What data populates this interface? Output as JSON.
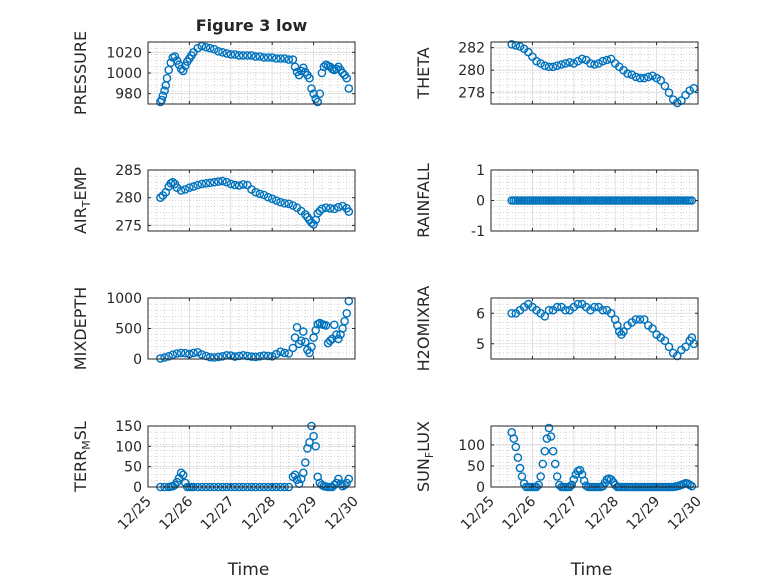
{
  "figure": {
    "title": "Figure 3 low",
    "marker_color": "#0072BD",
    "x_tick_labels": [
      "12/25",
      "12/26",
      "12/27",
      "12/28",
      "12/29",
      "12/30"
    ],
    "xlabel": "Time"
  },
  "chart_data": [
    {
      "type": "scatter",
      "marker": "circle-open",
      "grid": true,
      "title": "Figure 3 low",
      "ylabel": "PRESSURE",
      "ylim": [
        970,
        1030
      ],
      "yticks": [
        980,
        1000,
        1020
      ],
      "xlim": [
        0,
        5
      ],
      "xlabel": "",
      "x": [
        0.3,
        0.33,
        0.36,
        0.4,
        0.43,
        0.46,
        0.5,
        0.55,
        0.6,
        0.65,
        0.7,
        0.75,
        0.8,
        0.85,
        0.9,
        0.95,
        1.0,
        1.05,
        1.1,
        1.2,
        1.3,
        1.4,
        1.5,
        1.6,
        1.7,
        1.8,
        1.9,
        2.0,
        2.1,
        2.2,
        2.3,
        2.4,
        2.5,
        2.6,
        2.7,
        2.8,
        2.9,
        3.0,
        3.1,
        3.2,
        3.3,
        3.4,
        3.5,
        3.55,
        3.6,
        3.65,
        3.7,
        3.75,
        3.8,
        3.85,
        3.9,
        3.95,
        4.0,
        4.05,
        4.1,
        4.15,
        4.2,
        4.25,
        4.3,
        4.35,
        4.4,
        4.45,
        4.5,
        4.55,
        4.6,
        4.65,
        4.7,
        4.75,
        4.8,
        4.85
      ],
      "y": [
        972,
        974,
        978,
        983,
        988,
        995,
        1003,
        1010,
        1015,
        1016,
        1012,
        1008,
        1004,
        1002,
        1007,
        1011,
        1014,
        1017,
        1020,
        1024,
        1026,
        1025,
        1024,
        1023,
        1021,
        1020,
        1019,
        1018,
        1018,
        1017,
        1017,
        1017,
        1017,
        1016,
        1016,
        1015,
        1015,
        1015,
        1014,
        1014,
        1014,
        1013,
        1013,
        1006,
        1001,
        998,
        1002,
        1005,
        1001,
        998,
        995,
        985,
        980,
        975,
        972,
        980,
        1000,
        1006,
        1008,
        1007,
        1006,
        1004,
        1003,
        1004,
        1006,
        1003,
        1000,
        998,
        995,
        985
      ]
    },
    {
      "type": "scatter",
      "marker": "circle-open",
      "grid": true,
      "ylabel": "THETA",
      "ylim": [
        277,
        282.5
      ],
      "yticks": [
        278,
        280,
        282
      ],
      "xlim": [
        0,
        5
      ],
      "xlabel": "",
      "x": [
        0.5,
        0.6,
        0.7,
        0.8,
        0.9,
        1.0,
        1.1,
        1.2,
        1.3,
        1.4,
        1.5,
        1.6,
        1.7,
        1.8,
        1.9,
        2.0,
        2.1,
        2.2,
        2.3,
        2.4,
        2.5,
        2.6,
        2.7,
        2.8,
        2.9,
        3.0,
        3.1,
        3.2,
        3.3,
        3.4,
        3.5,
        3.6,
        3.7,
        3.8,
        3.9,
        4.0,
        4.1,
        4.2,
        4.3,
        4.4,
        4.5,
        4.6,
        4.7,
        4.8,
        4.9
      ],
      "y": [
        282.3,
        282.2,
        282.1,
        281.9,
        281.6,
        281.2,
        280.8,
        280.6,
        280.4,
        280.3,
        280.3,
        280.4,
        280.5,
        280.6,
        280.7,
        280.6,
        280.8,
        281.0,
        280.9,
        280.6,
        280.5,
        280.6,
        280.8,
        280.9,
        281.0,
        280.6,
        280.3,
        280.0,
        279.7,
        279.6,
        279.4,
        279.3,
        279.3,
        279.4,
        279.5,
        279.3,
        279.1,
        278.6,
        278.0,
        277.4,
        277.1,
        277.3,
        277.8,
        278.2,
        278.4
      ]
    },
    {
      "type": "scatter",
      "marker": "circle-open",
      "grid": true,
      "ylabel": "AIR_TEMP",
      "ylabel_main": "AIR",
      "ylabel_sub": "T",
      "ylabel_rest": "EMP",
      "ylim": [
        274,
        285
      ],
      "yticks": [
        275,
        280,
        285
      ],
      "xlim": [
        0,
        5
      ],
      "xlabel": "",
      "x": [
        0.3,
        0.36,
        0.43,
        0.5,
        0.55,
        0.6,
        0.65,
        0.7,
        0.8,
        0.9,
        1.0,
        1.1,
        1.2,
        1.3,
        1.4,
        1.5,
        1.6,
        1.7,
        1.8,
        1.9,
        2.0,
        2.1,
        2.2,
        2.3,
        2.4,
        2.5,
        2.6,
        2.7,
        2.8,
        2.9,
        3.0,
        3.1,
        3.2,
        3.3,
        3.4,
        3.5,
        3.6,
        3.7,
        3.8,
        3.85,
        3.9,
        3.95,
        4.0,
        4.05,
        4.1,
        4.15,
        4.2,
        4.3,
        4.4,
        4.5,
        4.6,
        4.7,
        4.8,
        4.85
      ],
      "y": [
        280.0,
        280.4,
        281.0,
        282.0,
        282.6,
        282.8,
        282.5,
        281.8,
        281.3,
        281.5,
        281.8,
        282.0,
        282.3,
        282.5,
        282.6,
        282.7,
        282.8,
        282.9,
        283.0,
        282.8,
        282.5,
        282.3,
        282.2,
        282.4,
        282.3,
        281.5,
        281.0,
        280.7,
        280.5,
        280.1,
        279.8,
        279.5,
        279.2,
        279.0,
        278.9,
        278.6,
        278.2,
        277.6,
        277.0,
        276.5,
        276.0,
        275.5,
        275.2,
        276.0,
        277.2,
        277.6,
        278.0,
        278.2,
        278.1,
        278.0,
        278.3,
        278.5,
        278.1,
        277.5
      ]
    },
    {
      "type": "scatter",
      "marker": "circle-open",
      "grid": true,
      "ylabel": "RAINFALL",
      "ylim": [
        -1,
        1
      ],
      "yticks": [
        -1,
        0,
        1
      ],
      "xlim": [
        0,
        5
      ],
      "xlabel": "",
      "x_start": 0.5,
      "x_end": 4.85,
      "x_step": 0.05,
      "constant_y": 0
    },
    {
      "type": "scatter",
      "marker": "circle-open",
      "grid": true,
      "ylabel": "MIXDEPTH",
      "ylim": [
        0,
        1000
      ],
      "yticks": [
        0,
        500,
        1000
      ],
      "xlim": [
        0,
        5
      ],
      "xlabel": "",
      "x": [
        0.3,
        0.4,
        0.5,
        0.6,
        0.7,
        0.8,
        0.9,
        1.0,
        1.1,
        1.2,
        1.3,
        1.4,
        1.5,
        1.6,
        1.7,
        1.8,
        1.9,
        2.0,
        2.1,
        2.2,
        2.3,
        2.4,
        2.5,
        2.6,
        2.7,
        2.8,
        2.9,
        3.0,
        3.1,
        3.2,
        3.3,
        3.4,
        3.5,
        3.55,
        3.6,
        3.65,
        3.7,
        3.75,
        3.8,
        3.85,
        3.9,
        3.95,
        4.0,
        4.05,
        4.1,
        4.15,
        4.2,
        4.25,
        4.3,
        4.35,
        4.4,
        4.45,
        4.5,
        4.55,
        4.6,
        4.65,
        4.7,
        4.75,
        4.8,
        4.85
      ],
      "y": [
        10,
        25,
        45,
        70,
        90,
        100,
        95,
        80,
        100,
        110,
        75,
        50,
        30,
        25,
        35,
        45,
        60,
        55,
        40,
        50,
        60,
        50,
        40,
        35,
        45,
        55,
        50,
        45,
        80,
        120,
        100,
        90,
        180,
        350,
        520,
        250,
        300,
        450,
        280,
        150,
        100,
        200,
        350,
        470,
        570,
        590,
        570,
        560,
        550,
        260,
        300,
        330,
        560,
        400,
        330,
        400,
        500,
        620,
        750,
        950
      ]
    },
    {
      "type": "scatter",
      "marker": "circle-open",
      "grid": true,
      "ylabel": "H2OMIXRA",
      "ylim": [
        4.5,
        6.5
      ],
      "yticks": [
        5,
        6
      ],
      "xlim": [
        0,
        5
      ],
      "xlabel": "",
      "x": [
        0.5,
        0.6,
        0.7,
        0.8,
        0.9,
        1.0,
        1.1,
        1.2,
        1.3,
        1.4,
        1.5,
        1.6,
        1.7,
        1.8,
        1.9,
        2.0,
        2.1,
        2.2,
        2.3,
        2.4,
        2.5,
        2.6,
        2.7,
        2.8,
        2.9,
        3.0,
        3.05,
        3.1,
        3.15,
        3.2,
        3.3,
        3.4,
        3.5,
        3.6,
        3.7,
        3.8,
        3.9,
        4.0,
        4.1,
        4.2,
        4.3,
        4.4,
        4.5,
        4.6,
        4.7,
        4.8,
        4.85,
        4.9
      ],
      "y": [
        6.0,
        6.0,
        6.1,
        6.2,
        6.3,
        6.2,
        6.1,
        6.0,
        5.9,
        6.1,
        6.1,
        6.2,
        6.2,
        6.1,
        6.1,
        6.2,
        6.3,
        6.3,
        6.2,
        6.1,
        6.2,
        6.2,
        6.1,
        6.1,
        6.0,
        5.8,
        5.6,
        5.4,
        5.3,
        5.4,
        5.6,
        5.7,
        5.8,
        5.8,
        5.8,
        5.6,
        5.5,
        5.3,
        5.2,
        5.1,
        4.9,
        4.7,
        4.6,
        4.8,
        4.9,
        5.1,
        5.2,
        5.0
      ]
    },
    {
      "type": "scatter",
      "marker": "circle-open",
      "grid": true,
      "ylabel": "TERR_MSL",
      "ylabel_main": "TERR",
      "ylabel_sub": "M",
      "ylabel_rest": "SL",
      "ylim": [
        0,
        150
      ],
      "yticks": [
        0,
        50,
        100,
        150
      ],
      "xlim": [
        0,
        5
      ],
      "xlabel": "Time",
      "x": [
        0.3,
        0.4,
        0.5,
        0.55,
        0.6,
        0.65,
        0.7,
        0.75,
        0.8,
        0.85,
        0.9,
        0.95,
        1.0,
        1.05,
        1.1,
        1.2,
        1.3,
        1.4,
        1.5,
        1.6,
        1.7,
        1.8,
        1.9,
        2.0,
        2.1,
        2.2,
        2.3,
        2.4,
        2.5,
        2.6,
        2.7,
        2.8,
        2.9,
        3.0,
        3.1,
        3.2,
        3.3,
        3.4,
        3.5,
        3.55,
        3.6,
        3.65,
        3.7,
        3.75,
        3.8,
        3.85,
        3.9,
        3.95,
        4.0,
        4.05,
        4.1,
        4.15,
        4.2,
        4.25,
        4.3,
        4.35,
        4.4,
        4.45,
        4.5,
        4.55,
        4.6,
        4.65,
        4.7,
        4.75,
        4.8,
        4.85
      ],
      "y": [
        0,
        0,
        0,
        1,
        2,
        5,
        12,
        22,
        35,
        30,
        10,
        0,
        0,
        0,
        0,
        0,
        0,
        0,
        0,
        0,
        0,
        0,
        0,
        0,
        0,
        0,
        0,
        0,
        0,
        0,
        0,
        0,
        0,
        0,
        0,
        0,
        0,
        0,
        25,
        30,
        18,
        8,
        20,
        35,
        60,
        95,
        110,
        150,
        125,
        100,
        25,
        10,
        5,
        2,
        1,
        0,
        0,
        0,
        5,
        10,
        20,
        8,
        2,
        5,
        10,
        20
      ]
    },
    {
      "type": "scatter",
      "marker": "circle-open",
      "grid": true,
      "ylabel": "SUN_FLUX",
      "ylabel_main": "SUN",
      "ylabel_sub": "F",
      "ylabel_rest": "LUX",
      "ylim": [
        0,
        145
      ],
      "yticks": [
        0,
        50,
        100
      ],
      "xlim": [
        0,
        5
      ],
      "xlabel": "Time",
      "x": [
        0.5,
        0.55,
        0.6,
        0.65,
        0.7,
        0.75,
        0.8,
        0.85,
        0.9,
        0.95,
        1.0,
        1.05,
        1.1,
        1.15,
        1.2,
        1.25,
        1.3,
        1.35,
        1.4,
        1.45,
        1.5,
        1.55,
        1.6,
        1.65,
        1.7,
        1.75,
        1.8,
        1.85,
        1.9,
        1.95,
        2.0,
        2.05,
        2.1,
        2.15,
        2.2,
        2.25,
        2.3,
        2.35,
        2.4,
        2.45,
        2.5,
        2.55,
        2.6,
        2.65,
        2.7,
        2.75,
        2.8,
        2.85,
        2.9,
        2.95,
        3.0,
        3.05,
        3.1,
        3.15,
        3.2,
        3.25,
        3.3,
        3.35,
        3.4,
        3.45,
        3.5,
        3.55,
        3.6,
        3.65,
        3.7,
        3.75,
        3.8,
        3.85,
        3.9,
        3.95,
        4.0,
        4.05,
        4.1,
        4.15,
        4.2,
        4.25,
        4.3,
        4.35,
        4.4,
        4.45,
        4.5,
        4.55,
        4.6,
        4.65,
        4.7,
        4.75,
        4.8,
        4.85
      ],
      "y": [
        130,
        115,
        95,
        70,
        45,
        25,
        8,
        0,
        0,
        0,
        0,
        0,
        0,
        5,
        25,
        55,
        85,
        115,
        140,
        120,
        85,
        55,
        25,
        5,
        0,
        0,
        0,
        0,
        0,
        5,
        18,
        30,
        38,
        40,
        30,
        15,
        3,
        0,
        0,
        0,
        0,
        0,
        0,
        0,
        2,
        10,
        18,
        20,
        18,
        12,
        5,
        0,
        0,
        0,
        0,
        0,
        0,
        0,
        0,
        0,
        0,
        0,
        0,
        0,
        0,
        0,
        0,
        0,
        0,
        0,
        0,
        0,
        0,
        0,
        0,
        0,
        0,
        0,
        0,
        1,
        2,
        3,
        5,
        7,
        9,
        8,
        5,
        2
      ]
    }
  ]
}
